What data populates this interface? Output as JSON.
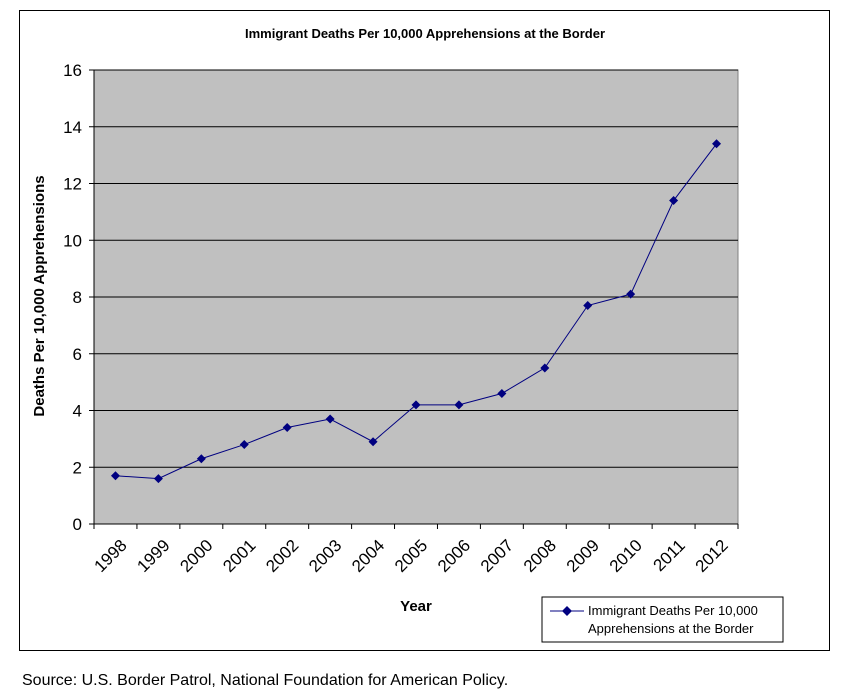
{
  "chart_data": {
    "type": "line",
    "title": "Immigrant Deaths Per 10,000 Apprehensions at the Border",
    "xlabel": "Year",
    "ylabel": "Deaths Per 10,000 Apprehensions",
    "categories": [
      "1998",
      "1999",
      "2000",
      "2001",
      "2002",
      "2003",
      "2004",
      "2005",
      "2006",
      "2007",
      "2008",
      "2009",
      "2010",
      "2011",
      "2012"
    ],
    "series": [
      {
        "name": "Immigrant Deaths Per 10,000 Apprehensions at the Border",
        "values": [
          1.7,
          1.6,
          2.3,
          2.8,
          3.4,
          3.7,
          2.9,
          4.2,
          4.2,
          4.6,
          5.5,
          7.7,
          8.1,
          11.4,
          13.4
        ]
      }
    ],
    "ylim": [
      0,
      16
    ],
    "yticks": [
      0,
      2,
      4,
      6,
      8,
      10,
      12,
      14,
      16
    ],
    "grid": true,
    "legend_position": "bottom-right",
    "colors": {
      "plot_bg": "#c0c0c0",
      "line": "#000080",
      "grid": "#000000"
    }
  },
  "legend": {
    "line1": "Immigrant Deaths Per 10,000",
    "line2": "Apprehensions at the Border"
  },
  "source": "Source: U.S. Border Patrol, National Foundation for American Policy."
}
